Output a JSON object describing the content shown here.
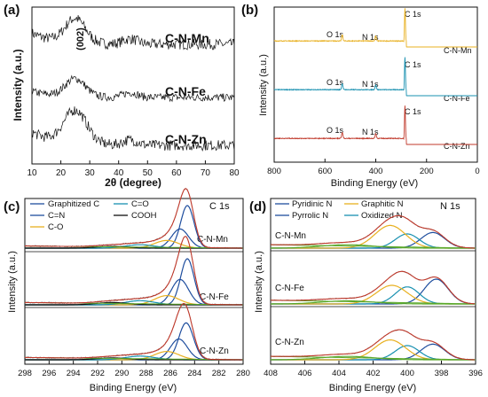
{
  "colors": {
    "mn": "#e8b020",
    "fe": "#1890b0",
    "zn": "#c0392b",
    "black": "#111111",
    "blue": "#1f4e9e",
    "green": "#5aa82a"
  },
  "chart_data": [
    {
      "id": "a",
      "panel_label": "(a)",
      "type": "line",
      "xlabel": "2θ (degree)",
      "ylabel": "Intensity (a.u.)",
      "xlim": [
        10,
        80
      ],
      "xticks": [
        "10",
        "20",
        "30",
        "40",
        "50",
        "60",
        "70",
        "80"
      ],
      "annotation": "(002)",
      "series": [
        {
          "name": "C-N-Mn",
          "peaks": [
            [
              25,
              0.55,
              3.5
            ]
          ],
          "noise": 0.12,
          "decay": 0.25
        },
        {
          "name": "C-N-Fe",
          "peaks": [
            [
              25,
              0.45,
              3.5
            ]
          ],
          "noise": 0.1,
          "decay": 0.15
        },
        {
          "name": "C-N-Zn",
          "peaks": [
            [
              25,
              0.75,
              4.0
            ]
          ],
          "noise": 0.12,
          "decay": 0.3
        }
      ]
    },
    {
      "id": "b",
      "panel_label": "(b)",
      "type": "line",
      "xlabel": "Binding Energy (eV)",
      "ylabel": "Intensity (a.u.)",
      "xlim": [
        800,
        0
      ],
      "xticks": [
        "800",
        "600",
        "400",
        "200",
        "0"
      ],
      "peak_labels": [
        "O 1s",
        "N 1s",
        "C 1s"
      ],
      "series": [
        {
          "name": "C-N-Mn",
          "color_key": "mn",
          "peaks": [
            [
              532,
              0.18,
              2.5
            ],
            [
              400,
              0.14,
              2.5
            ],
            [
              285,
              1.0,
              1.8
            ]
          ]
        },
        {
          "name": "C-N-Fe",
          "color_key": "fe",
          "peaks": [
            [
              532,
              0.18,
              2.5
            ],
            [
              400,
              0.14,
              2.5
            ],
            [
              285,
              1.0,
              1.8
            ]
          ]
        },
        {
          "name": "C-N-Zn",
          "color_key": "zn",
          "peaks": [
            [
              532,
              0.18,
              2.5
            ],
            [
              400,
              0.14,
              2.5
            ],
            [
              285,
              1.0,
              1.8
            ]
          ]
        }
      ]
    },
    {
      "id": "c",
      "panel_label": "(c)",
      "type": "line",
      "title": "C 1s",
      "xlabel": "Binding Energy (eV)",
      "ylabel": "Intensity (a.u.)",
      "xlim": [
        298,
        280
      ],
      "xticks": [
        "298",
        "296",
        "294",
        "292",
        "290",
        "288",
        "286",
        "284",
        "282",
        "280"
      ],
      "legend": [
        {
          "name": "Graphitized C",
          "color_key": "blue"
        },
        {
          "name": "C=O",
          "color_key": "fe"
        },
        {
          "name": "C=N",
          "color_key": "blue"
        },
        {
          "name": "COOH",
          "color_key": "black"
        },
        {
          "name": "C-O",
          "color_key": "mn"
        }
      ],
      "series": [
        {
          "name": "C-N-Mn",
          "components": [
            [
              284.6,
              1.0,
              0.55
            ],
            [
              285.2,
              0.45,
              0.7
            ],
            [
              286.3,
              0.18,
              1.0
            ],
            [
              288.5,
              0.08,
              1.2
            ],
            [
              290.8,
              0.04,
              1.3
            ]
          ]
        },
        {
          "name": "C-N-Fe",
          "components": [
            [
              284.6,
              1.0,
              0.55
            ],
            [
              285.2,
              0.55,
              0.7
            ],
            [
              286.3,
              0.2,
              1.0
            ],
            [
              288.5,
              0.09,
              1.2
            ],
            [
              290.8,
              0.05,
              1.3
            ]
          ]
        },
        {
          "name": "C-N-Zn",
          "components": [
            [
              284.7,
              0.8,
              0.6
            ],
            [
              285.3,
              0.45,
              0.7
            ],
            [
              286.3,
              0.18,
              1.0
            ],
            [
              288.5,
              0.08,
              1.2
            ],
            [
              290.8,
              0.04,
              1.3
            ]
          ]
        }
      ]
    },
    {
      "id": "d",
      "panel_label": "(d)",
      "type": "line",
      "title": "N 1s",
      "xlabel": "Binding Energy (eV)",
      "ylabel": "Intensity (a.u.)",
      "xlim": [
        408,
        396
      ],
      "xticks": [
        "408",
        "406",
        "404",
        "402",
        "400",
        "398",
        "396"
      ],
      "legend": [
        {
          "name": "Pyridinic N",
          "color_key": "blue"
        },
        {
          "name": "Graphitic N",
          "color_key": "mn"
        },
        {
          "name": "Pyrrolic N",
          "color_key": "blue"
        },
        {
          "name": "Oxidized N",
          "color_key": "fe"
        }
      ],
      "series": [
        {
          "name": "C-N-Mn",
          "components": [
            [
              398.5,
              0.55,
              0.7
            ],
            [
              400.0,
              0.5,
              0.7
            ],
            [
              401.0,
              0.8,
              0.9
            ],
            [
              403.5,
              0.12,
              1.5
            ]
          ]
        },
        {
          "name": "C-N-Fe",
          "components": [
            [
              398.3,
              0.8,
              0.7
            ],
            [
              400.0,
              0.55,
              0.7
            ],
            [
              400.9,
              0.6,
              0.9
            ],
            [
              403.5,
              0.1,
              1.5
            ]
          ]
        },
        {
          "name": "C-N-Zn",
          "components": [
            [
              398.5,
              0.55,
              0.7
            ],
            [
              400.0,
              0.5,
              0.7
            ],
            [
              401.0,
              0.7,
              0.9
            ],
            [
              403.5,
              0.12,
              1.5
            ]
          ]
        }
      ]
    }
  ]
}
